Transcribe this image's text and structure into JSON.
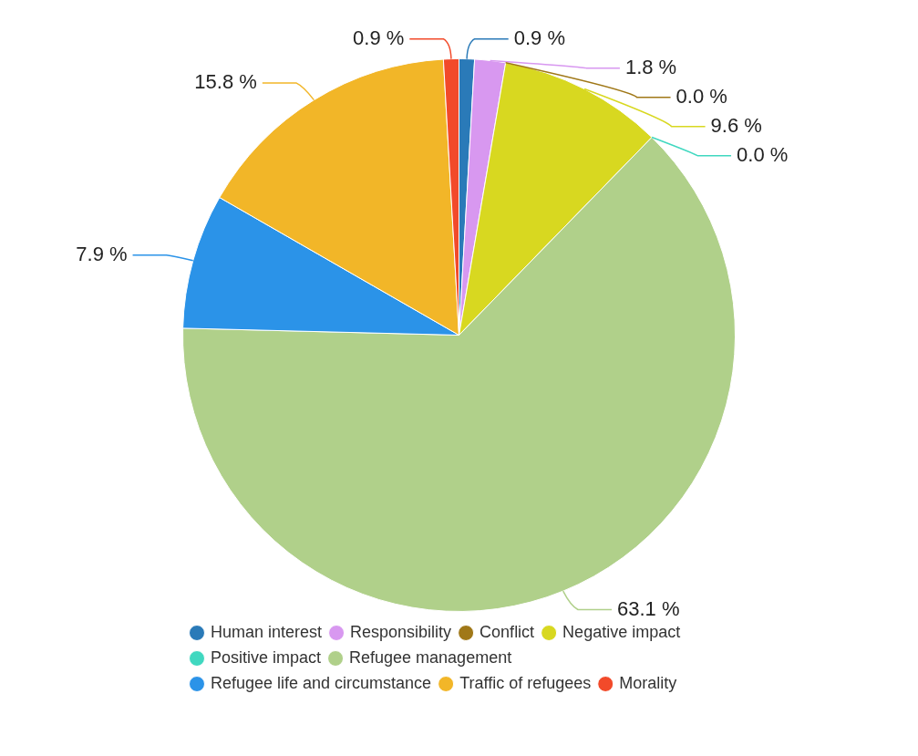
{
  "chart_data": {
    "type": "pie",
    "categories": [
      "Human interest",
      "Responsibility",
      "Conflict",
      "Negative impact",
      "Positive impact",
      "Refugee management",
      "Refugee life and circumstance",
      "Traffic of refugees",
      "Morality"
    ],
    "values": [
      0.9,
      1.8,
      0.0,
      9.6,
      0.0,
      63.1,
      7.9,
      15.8,
      0.9
    ],
    "value_labels": [
      "0.9 %",
      "1.8 %",
      "0.0 %",
      "9.6 %",
      "0.0 %",
      "63.1 %",
      "7.9 %",
      "15.8 %",
      "0.9 %"
    ],
    "colors": [
      "#2a7ab8",
      "#d898f0",
      "#a07818",
      "#d8d820",
      "#40d8c0",
      "#b0d08a",
      "#2b93e8",
      "#f2b628",
      "#f24a2a"
    ],
    "legend": "bottom"
  }
}
